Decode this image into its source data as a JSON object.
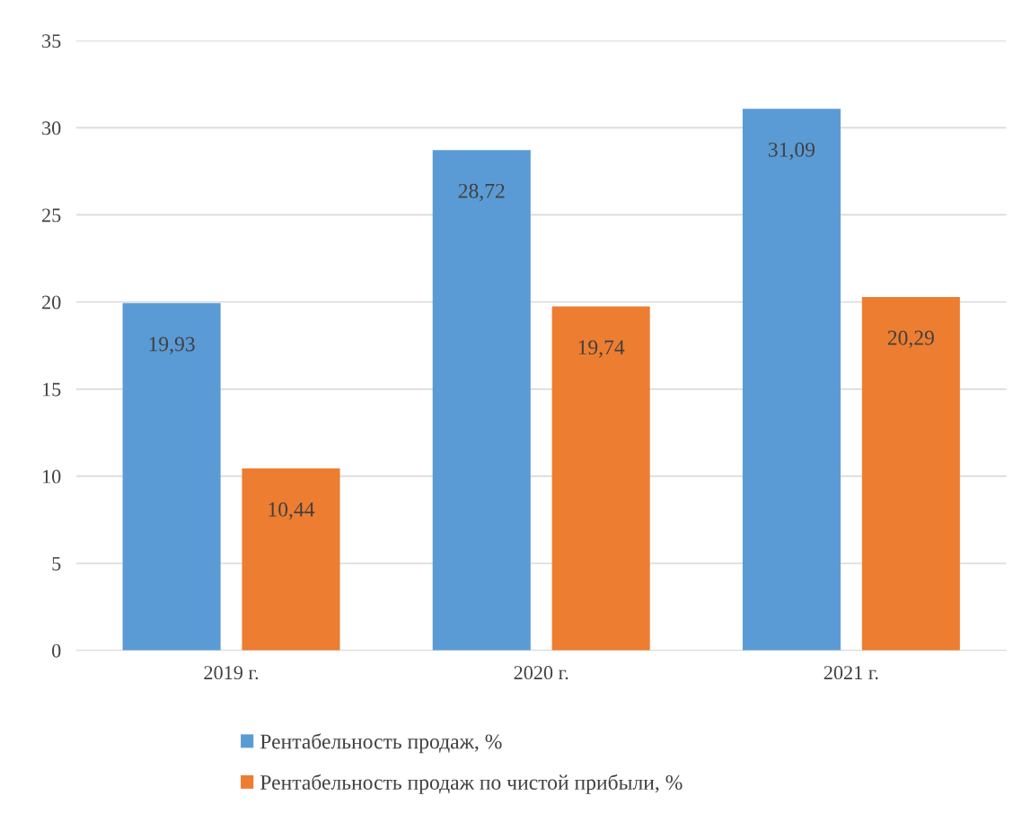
{
  "chart_data": {
    "type": "bar",
    "categories": [
      "2019 г.",
      "2020 г.",
      "2021 г."
    ],
    "series": [
      {
        "name": "Рентабельность продаж, %",
        "color": "#5b9bd5",
        "values": [
          19.93,
          28.72,
          31.09
        ],
        "value_labels": [
          "19,93",
          "28,72",
          "31,09"
        ]
      },
      {
        "name": "Рентабельность продаж по чистой прибыли, %",
        "color": "#ed7d31",
        "values": [
          10.44,
          19.74,
          20.29
        ],
        "value_labels": [
          "10,44",
          "19,74",
          "20,29"
        ]
      }
    ],
    "ylim": [
      0,
      35
    ],
    "yticks": [
      0,
      5,
      10,
      15,
      20,
      25,
      30,
      35
    ],
    "grid": "y",
    "legend": "bottom"
  }
}
